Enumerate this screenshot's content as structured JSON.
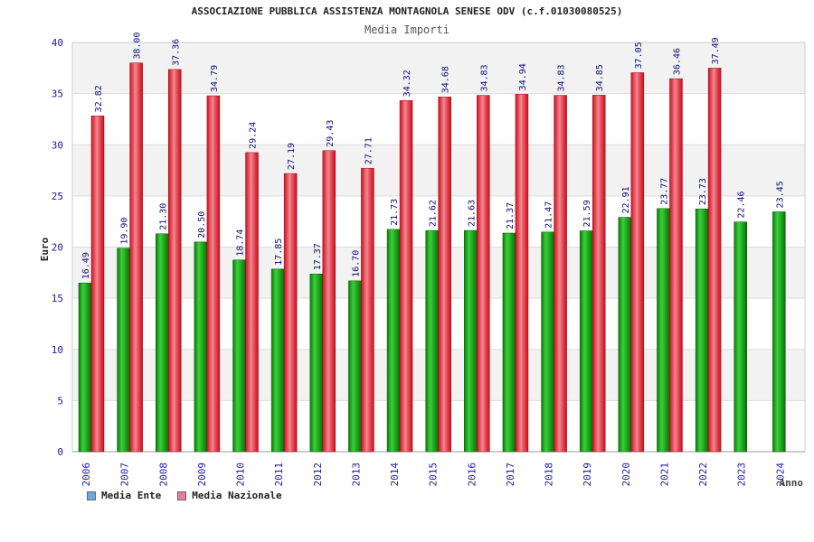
{
  "chart_data": {
    "type": "bar",
    "title": "ASSOCIAZIONE PUBBLICA ASSISTENZA MONTAGNOLA SENESE ODV (c.f.01030080525)",
    "subtitle": "Media Importi",
    "xlabel": "Anno",
    "ylabel": "Euro",
    "ylim": [
      0,
      40
    ],
    "yticks": [
      0,
      5,
      10,
      15,
      20,
      25,
      30,
      35,
      40
    ],
    "categories": [
      "2006",
      "2007",
      "2008",
      "2009",
      "2010",
      "2011",
      "2012",
      "2013",
      "2014",
      "2015",
      "2016",
      "2017",
      "2018",
      "2019",
      "2020",
      "2021",
      "2022",
      "2023",
      "2024"
    ],
    "series": [
      {
        "name": "Media Ente",
        "color": "#1a9e1a",
        "legend_color": "#6aa8e8",
        "values": [
          16.49,
          19.9,
          21.3,
          20.5,
          18.74,
          17.85,
          17.37,
          16.7,
          21.73,
          21.62,
          21.63,
          21.37,
          21.47,
          21.59,
          22.91,
          23.77,
          23.73,
          22.46,
          23.45
        ],
        "labels": [
          "16.49",
          "19.90",
          "21.30",
          "20.50",
          "18.74",
          "17.85",
          "17.37",
          "16.70",
          "21.73",
          "21.62",
          "21.63",
          "21.37",
          "21.47",
          "21.59",
          "22.91",
          "23.77",
          "23.73",
          "22.46",
          "23.45"
        ]
      },
      {
        "name": "Media Nazionale",
        "color": "#e8202a",
        "legend_color": "#e87aa8",
        "values": [
          32.82,
          38.0,
          37.36,
          34.79,
          29.24,
          27.19,
          29.43,
          27.71,
          34.32,
          34.68,
          34.83,
          34.94,
          34.83,
          34.85,
          37.05,
          36.46,
          37.49,
          null,
          null
        ],
        "labels": [
          "32.82",
          "38.00",
          "37.36",
          "34.79",
          "29.24",
          "27.19",
          "29.43",
          "27.71",
          "34.32",
          "34.68",
          "34.83",
          "34.94",
          "34.83",
          "34.85",
          "37.05",
          "36.46",
          "37.49",
          null,
          null
        ]
      }
    ]
  }
}
